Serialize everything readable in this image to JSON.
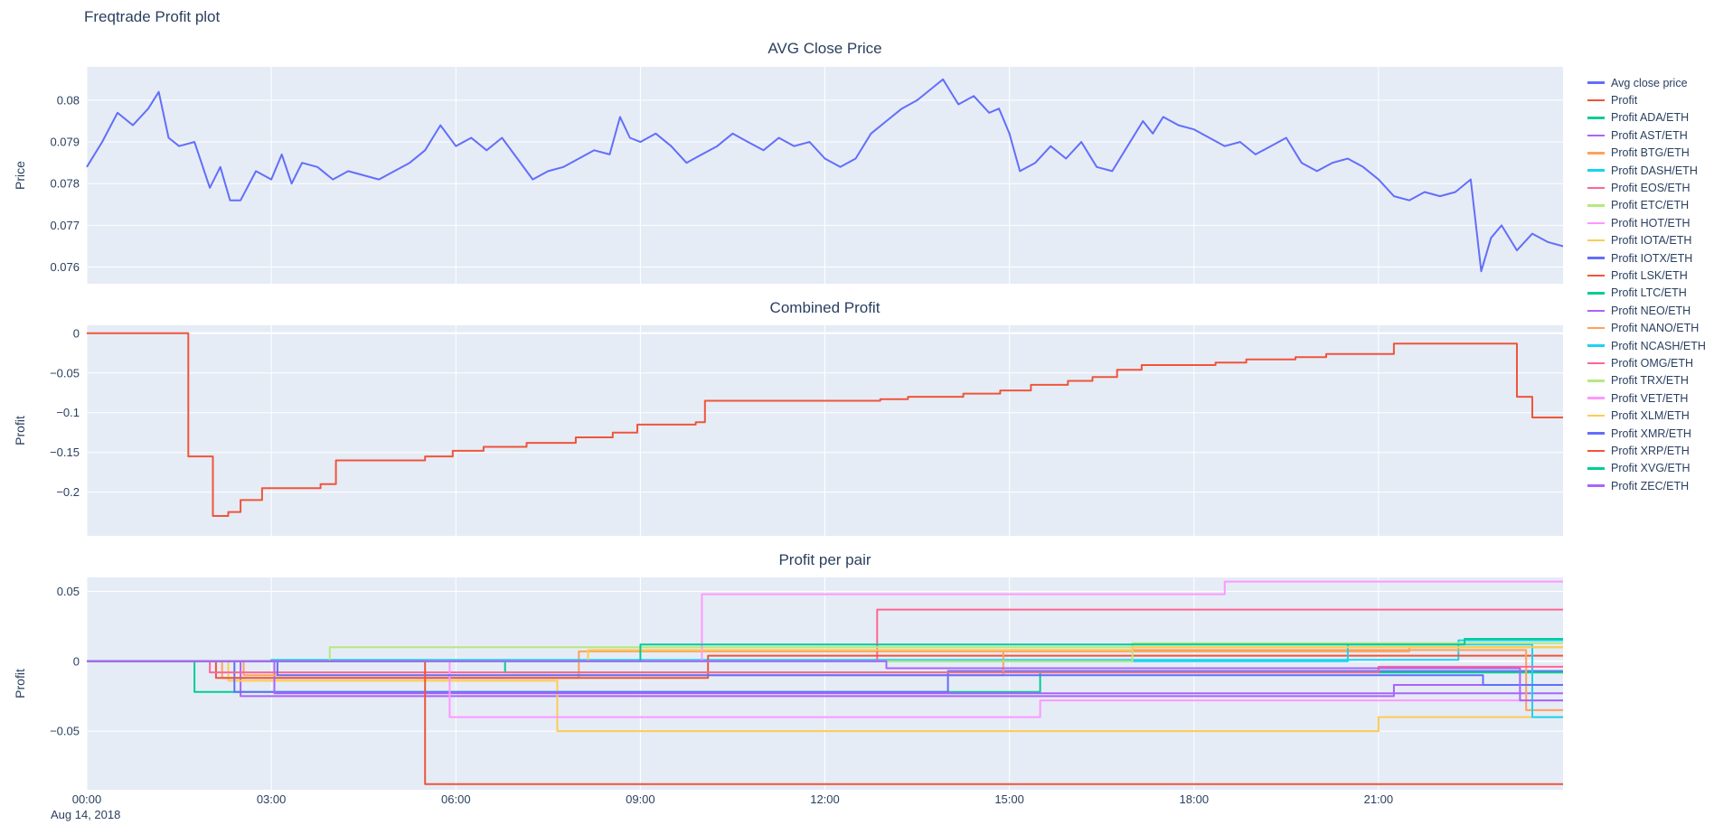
{
  "page_title": "Freqtrade Profit plot",
  "theme": {
    "plot_bg": "#E5ECF6",
    "grid": "#FFFFFF",
    "text": "#2a3f5f",
    "paper": "#FFFFFF"
  },
  "x_axis": {
    "range": [
      0,
      24
    ],
    "date_label": "Aug 14, 2018",
    "ticks": [
      {
        "v": 0,
        "label": "00:00"
      },
      {
        "v": 3,
        "label": "03:00"
      },
      {
        "v": 6,
        "label": "06:00"
      },
      {
        "v": 9,
        "label": "09:00"
      },
      {
        "v": 12,
        "label": "12:00"
      },
      {
        "v": 15,
        "label": "15:00"
      },
      {
        "v": 18,
        "label": "18:00"
      },
      {
        "v": 21,
        "label": "21:00"
      }
    ]
  },
  "legend": {
    "items": [
      {
        "label": "Avg close price",
        "color": "#636EFA"
      },
      {
        "label": "Profit",
        "color": "#EF553B"
      },
      {
        "label": "Profit ADA/ETH",
        "color": "#00CC96"
      },
      {
        "label": "Profit AST/ETH",
        "color": "#AB63FA"
      },
      {
        "label": "Profit BTG/ETH",
        "color": "#FFA15A"
      },
      {
        "label": "Profit DASH/ETH",
        "color": "#19D3F3"
      },
      {
        "label": "Profit EOS/ETH",
        "color": "#FF6692"
      },
      {
        "label": "Profit ETC/ETH",
        "color": "#B6E880"
      },
      {
        "label": "Profit HOT/ETH",
        "color": "#FF97FF"
      },
      {
        "label": "Profit IOTA/ETH",
        "color": "#FECB52"
      },
      {
        "label": "Profit IOTX/ETH",
        "color": "#636EFA"
      },
      {
        "label": "Profit LSK/ETH",
        "color": "#EF553B"
      },
      {
        "label": "Profit LTC/ETH",
        "color": "#00CC96"
      },
      {
        "label": "Profit NEO/ETH",
        "color": "#AB63FA"
      },
      {
        "label": "Profit NANO/ETH",
        "color": "#FFA15A"
      },
      {
        "label": "Profit NCASH/ETH",
        "color": "#19D3F3"
      },
      {
        "label": "Profit OMG/ETH",
        "color": "#FF6692"
      },
      {
        "label": "Profit TRX/ETH",
        "color": "#B6E880"
      },
      {
        "label": "Profit VET/ETH",
        "color": "#FF97FF"
      },
      {
        "label": "Profit XLM/ETH",
        "color": "#FECB52"
      },
      {
        "label": "Profit XMR/ETH",
        "color": "#636EFA"
      },
      {
        "label": "Profit XRP/ETH",
        "color": "#EF553B"
      },
      {
        "label": "Profit XVG/ETH",
        "color": "#00CC96"
      },
      {
        "label": "Profit ZEC/ETH",
        "color": "#AB63FA"
      }
    ]
  },
  "chart_data": [
    {
      "type": "line",
      "title": "AVG Close Price",
      "ylabel": "Price",
      "xlabel": "",
      "ylim": [
        0.0756,
        0.0808
      ],
      "yticks": [
        {
          "v": 0.076,
          "label": "0.076"
        },
        {
          "v": 0.077,
          "label": "0.077"
        },
        {
          "v": 0.078,
          "label": "0.078"
        },
        {
          "v": 0.079,
          "label": "0.079"
        },
        {
          "v": 0.08,
          "label": "0.08"
        }
      ],
      "series": [
        {
          "name": "Avg close price",
          "color": "#636EFA",
          "step": false,
          "x": [
            0,
            0.25,
            0.5,
            0.75,
            1,
            1.17,
            1.33,
            1.5,
            1.75,
            2,
            2.17,
            2.33,
            2.5,
            2.75,
            3,
            3.17,
            3.33,
            3.5,
            3.75,
            4,
            4.25,
            4.5,
            4.75,
            5,
            5.25,
            5.5,
            5.75,
            6,
            6.25,
            6.5,
            6.75,
            7,
            7.25,
            7.5,
            7.75,
            8,
            8.25,
            8.5,
            8.67,
            8.83,
            9,
            9.25,
            9.5,
            9.75,
            10,
            10.25,
            10.5,
            10.75,
            11,
            11.25,
            11.5,
            11.75,
            12,
            12.25,
            12.5,
            12.75,
            13,
            13.25,
            13.5,
            13.75,
            13.92,
            14.17,
            14.42,
            14.67,
            14.83,
            15,
            15.17,
            15.42,
            15.67,
            15.92,
            16.17,
            16.42,
            16.67,
            16.92,
            17.17,
            17.33,
            17.5,
            17.75,
            18,
            18.25,
            18.5,
            18.75,
            19,
            19.25,
            19.5,
            19.75,
            20,
            20.25,
            20.5,
            20.75,
            21,
            21.25,
            21.5,
            21.75,
            22,
            22.25,
            22.5,
            22.67,
            22.83,
            23,
            23.25,
            23.5,
            23.75,
            24
          ],
          "y": [
            0.0784,
            0.079,
            0.0797,
            0.0794,
            0.0798,
            0.0802,
            0.0791,
            0.0789,
            0.079,
            0.0779,
            0.0784,
            0.0776,
            0.0776,
            0.0783,
            0.0781,
            0.0787,
            0.078,
            0.0785,
            0.0784,
            0.0781,
            0.0783,
            0.0782,
            0.0781,
            0.0783,
            0.0785,
            0.0788,
            0.0794,
            0.0789,
            0.0791,
            0.0788,
            0.0791,
            0.0786,
            0.0781,
            0.0783,
            0.0784,
            0.0786,
            0.0788,
            0.0787,
            0.0796,
            0.0791,
            0.079,
            0.0792,
            0.0789,
            0.0785,
            0.0787,
            0.0789,
            0.0792,
            0.079,
            0.0788,
            0.0791,
            0.0789,
            0.079,
            0.0786,
            0.0784,
            0.0786,
            0.0792,
            0.0795,
            0.0798,
            0.08,
            0.0803,
            0.0805,
            0.0799,
            0.0801,
            0.0797,
            0.0798,
            0.0792,
            0.0783,
            0.0785,
            0.0789,
            0.0786,
            0.079,
            0.0784,
            0.0783,
            0.0789,
            0.0795,
            0.0792,
            0.0796,
            0.0794,
            0.0793,
            0.0791,
            0.0789,
            0.079,
            0.0787,
            0.0789,
            0.0791,
            0.0785,
            0.0783,
            0.0785,
            0.0786,
            0.0784,
            0.0781,
            0.0777,
            0.0776,
            0.0778,
            0.0777,
            0.0778,
            0.0781,
            0.0759,
            0.0767,
            0.077,
            0.0764,
            0.0768,
            0.0766,
            0.0765
          ]
        }
      ]
    },
    {
      "type": "line",
      "title": "Combined Profit",
      "ylabel": "Profit",
      "xlabel": "",
      "ylim": [
        -0.255,
        0.01
      ],
      "yticks": [
        {
          "v": 0,
          "label": "0"
        },
        {
          "v": -0.05,
          "label": "−0.05"
        },
        {
          "v": -0.1,
          "label": "−0.1"
        },
        {
          "v": -0.15,
          "label": "−0.15"
        },
        {
          "v": -0.2,
          "label": "−0.2"
        }
      ],
      "series": [
        {
          "name": "Profit",
          "color": "#EF553B",
          "step": true,
          "points": [
            [
              0,
              0
            ],
            [
              1.65,
              -0.155
            ],
            [
              2.05,
              -0.23
            ],
            [
              2.3,
              -0.225
            ],
            [
              2.5,
              -0.21
            ],
            [
              2.85,
              -0.195
            ],
            [
              3.8,
              -0.19
            ],
            [
              4.05,
              -0.16
            ],
            [
              5.5,
              -0.155
            ],
            [
              5.95,
              -0.148
            ],
            [
              6.45,
              -0.143
            ],
            [
              7.15,
              -0.138
            ],
            [
              7.95,
              -0.131
            ],
            [
              8.55,
              -0.125
            ],
            [
              8.95,
              -0.115
            ],
            [
              9.9,
              -0.112
            ],
            [
              10.05,
              -0.085
            ],
            [
              12.9,
              -0.083
            ],
            [
              13.35,
              -0.08
            ],
            [
              14.25,
              -0.076
            ],
            [
              14.85,
              -0.072
            ],
            [
              15.35,
              -0.065
            ],
            [
              15.95,
              -0.06
            ],
            [
              16.35,
              -0.055
            ],
            [
              16.75,
              -0.046
            ],
            [
              17.15,
              -0.04
            ],
            [
              18.35,
              -0.037
            ],
            [
              18.85,
              -0.033
            ],
            [
              19.65,
              -0.03
            ],
            [
              20.15,
              -0.026
            ],
            [
              21.25,
              -0.013
            ],
            [
              23.25,
              -0.08
            ],
            [
              23.5,
              -0.106
            ]
          ]
        }
      ]
    },
    {
      "type": "line",
      "title": "Profit per pair",
      "ylabel": "Profit",
      "xlabel": "",
      "ylim": [
        -0.092,
        0.06
      ],
      "yticks": [
        {
          "v": 0.05,
          "label": "0.05"
        },
        {
          "v": 0,
          "label": "0"
        },
        {
          "v": -0.05,
          "label": "−0.05"
        }
      ],
      "series": [
        {
          "name": "Profit ADA/ETH",
          "color": "#00CC96",
          "step": true,
          "points": [
            [
              0,
              0
            ],
            [
              1.75,
              -0.022
            ],
            [
              15.5,
              -0.008
            ]
          ]
        },
        {
          "name": "Profit AST/ETH",
          "color": "#AB63FA",
          "step": true,
          "points": [
            [
              0,
              0
            ],
            [
              2.5,
              -0.025
            ],
            [
              21.25,
              -0.017
            ]
          ]
        },
        {
          "name": "Profit BTG/ETH",
          "color": "#FFA15A",
          "step": true,
          "points": [
            [
              0,
              0
            ],
            [
              2.2,
              -0.012
            ],
            [
              8,
              0.007
            ],
            [
              21.5,
              0.01
            ]
          ]
        },
        {
          "name": "Profit DASH/ETH",
          "color": "#19D3F3",
          "step": true,
          "points": [
            [
              0,
              0
            ],
            [
              3,
              0.001
            ],
            [
              22.3,
              0.015
            ]
          ]
        },
        {
          "name": "Profit EOS/ETH",
          "color": "#FF6692",
          "step": true,
          "points": [
            [
              0,
              0
            ],
            [
              12.85,
              0.037
            ]
          ]
        },
        {
          "name": "Profit ETC/ETH",
          "color": "#B6E880",
          "step": true,
          "points": [
            [
              0,
              0
            ],
            [
              3.95,
              0.01
            ]
          ]
        },
        {
          "name": "Profit HOT/ETH",
          "color": "#FF97FF",
          "step": true,
          "points": [
            [
              0,
              0
            ],
            [
              10,
              0.048
            ],
            [
              18.5,
              0.057
            ]
          ]
        },
        {
          "name": "Profit IOTA/ETH",
          "color": "#FECB52",
          "step": true,
          "points": [
            [
              0,
              0
            ],
            [
              2.3,
              -0.014
            ],
            [
              7.65,
              -0.05
            ],
            [
              21,
              -0.04
            ]
          ]
        },
        {
          "name": "Profit IOTX/ETH",
          "color": "#636EFA",
          "step": true,
          "points": [
            [
              0,
              0
            ],
            [
              2.4,
              -0.022
            ],
            [
              14,
              -0.007
            ]
          ]
        },
        {
          "name": "Profit LSK/ETH",
          "color": "#EF553B",
          "step": true,
          "points": [
            [
              0,
              0
            ],
            [
              2.1,
              -0.012
            ],
            [
              10.1,
              0.004
            ]
          ]
        },
        {
          "name": "Profit LTC/ETH",
          "color": "#00CC96",
          "step": true,
          "points": [
            [
              0,
              0
            ],
            [
              6.8,
              -0.008
            ]
          ]
        },
        {
          "name": "Profit NEO/ETH",
          "color": "#AB63FA",
          "step": true,
          "points": [
            [
              0,
              0
            ],
            [
              3.05,
              -0.023
            ]
          ]
        },
        {
          "name": "Profit NANO/ETH",
          "color": "#FFA15A",
          "step": true,
          "points": [
            [
              0,
              0
            ],
            [
              2.55,
              -0.01
            ],
            [
              14.9,
              0.008
            ],
            [
              23.4,
              -0.035
            ]
          ]
        },
        {
          "name": "Profit NCASH/ETH",
          "color": "#19D3F3",
          "step": true,
          "points": [
            [
              0,
              0
            ],
            [
              20.5,
              0.012
            ],
            [
              23.5,
              -0.04
            ]
          ]
        },
        {
          "name": "Profit OMG/ETH",
          "color": "#FF6692",
          "step": true,
          "points": [
            [
              0,
              0
            ],
            [
              2,
              -0.008
            ],
            [
              21,
              -0.004
            ]
          ]
        },
        {
          "name": "Profit TRX/ETH",
          "color": "#B6E880",
          "step": true,
          "points": [
            [
              0,
              0
            ],
            [
              17,
              0.013
            ]
          ]
        },
        {
          "name": "Profit VET/ETH",
          "color": "#FF97FF",
          "step": true,
          "points": [
            [
              0,
              0
            ],
            [
              5.9,
              -0.04
            ],
            [
              15.5,
              -0.028
            ]
          ]
        },
        {
          "name": "Profit XLM/ETH",
          "color": "#FECB52",
          "step": true,
          "points": [
            [
              0,
              0
            ],
            [
              8.15,
              0.008
            ],
            [
              17,
              0.01
            ]
          ]
        },
        {
          "name": "Profit XMR/ETH",
          "color": "#636EFA",
          "step": true,
          "points": [
            [
              0,
              0
            ],
            [
              3.1,
              -0.01
            ],
            [
              22.7,
              -0.017
            ]
          ]
        },
        {
          "name": "Profit XRP/ETH",
          "color": "#EF553B",
          "step": true,
          "points": [
            [
              0,
              0
            ],
            [
              5.5,
              -0.088
            ]
          ]
        },
        {
          "name": "Profit XVG/ETH",
          "color": "#00CC96",
          "step": true,
          "points": [
            [
              0,
              0
            ],
            [
              9,
              0.012
            ],
            [
              22.4,
              0.016
            ]
          ]
        },
        {
          "name": "Profit ZEC/ETH",
          "color": "#AB63FA",
          "step": true,
          "points": [
            [
              0,
              0
            ],
            [
              13,
              -0.005
            ],
            [
              23.3,
              -0.028
            ]
          ]
        }
      ]
    }
  ]
}
